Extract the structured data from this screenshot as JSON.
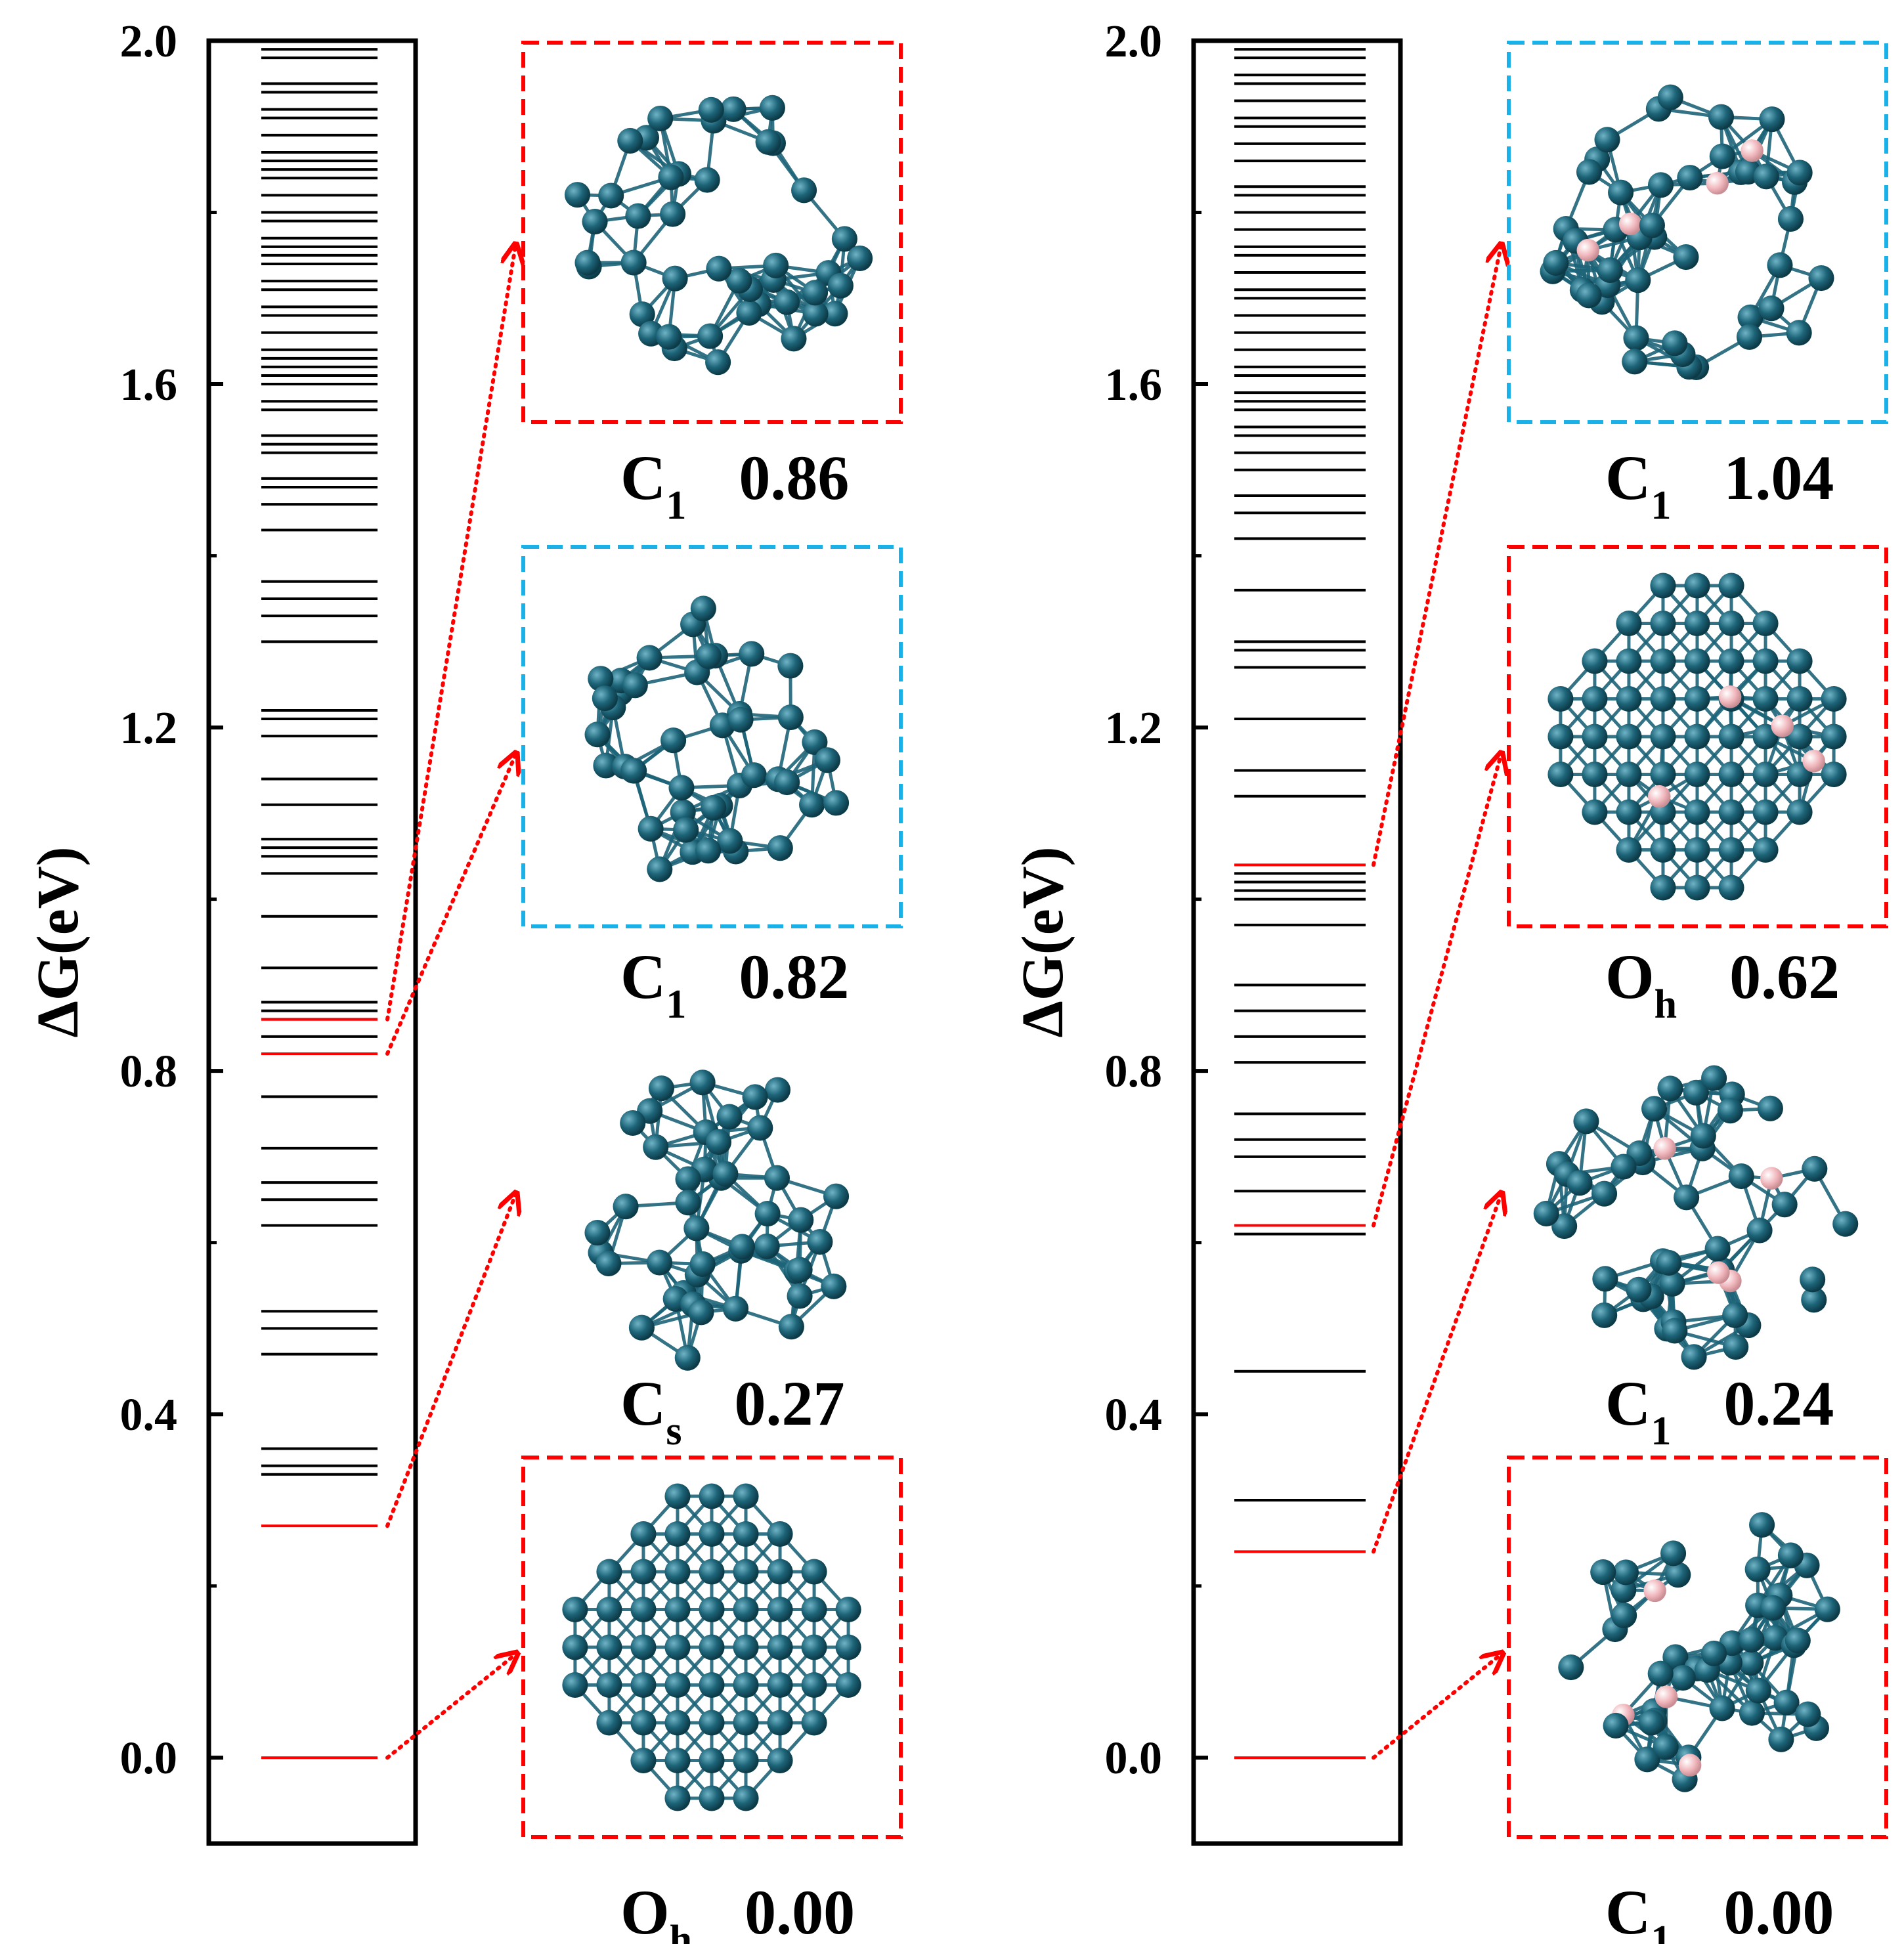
{
  "chart_data": [
    {
      "type": "energy-spectrum",
      "ylabel": "ΔG(eV)",
      "ylim": [
        -0.1,
        2.0
      ],
      "yticks": [
        "0.0",
        "0.4",
        "0.8",
        "1.2",
        "1.6",
        "2.0"
      ],
      "ytick_values": [
        0.0,
        0.4,
        0.8,
        1.2,
        1.6,
        2.0
      ],
      "grid": false,
      "level_color": "#000000",
      "highlight_color": "#ff0000",
      "levels": [
        0.33,
        0.34,
        0.36,
        0.47,
        0.5,
        0.52,
        0.62,
        0.65,
        0.67,
        0.71,
        0.77,
        0.84,
        0.86,
        0.87,
        0.88,
        0.92,
        0.98,
        1.03,
        1.05,
        1.06,
        1.07,
        1.11,
        1.14,
        1.19,
        1.21,
        1.22,
        1.3,
        1.33,
        1.35,
        1.37,
        1.43,
        1.46,
        1.48,
        1.49,
        1.52,
        1.53,
        1.54,
        1.57,
        1.58,
        1.6,
        1.61,
        1.62,
        1.63,
        1.64,
        1.66,
        1.68,
        1.69,
        1.71,
        1.72,
        1.74,
        1.75,
        1.76,
        1.77,
        1.79,
        1.8,
        1.82,
        1.84,
        1.85,
        1.86,
        1.87,
        1.89,
        1.91,
        1.92,
        1.94,
        1.95,
        1.98,
        1.99
      ],
      "highlighted": [
        {
          "energy": 0.86,
          "symmetry": "C",
          "subscript": "1",
          "value": "0.86",
          "box_color": "#ff0000"
        },
        {
          "energy": 0.82,
          "symmetry": "C",
          "subscript": "1",
          "value": "0.82",
          "box_color": "#1ab0e8"
        },
        {
          "energy": 0.27,
          "symmetry": "C",
          "subscript": "s",
          "value": "0.27",
          "box_color": null
        },
        {
          "energy": 0.0,
          "symmetry": "O",
          "subscript": "h",
          "value": "0.00",
          "box_color": "#ff0000"
        }
      ]
    },
    {
      "type": "energy-spectrum",
      "ylabel": "ΔG(eV)",
      "ylim": [
        -0.1,
        2.0
      ],
      "yticks": [
        "0.0",
        "0.4",
        "0.8",
        "1.2",
        "1.6",
        "2.0"
      ],
      "ytick_values": [
        0.0,
        0.4,
        0.8,
        1.2,
        1.6,
        2.0
      ],
      "grid": false,
      "level_color": "#000000",
      "highlight_color": "#ff0000",
      "levels": [
        0.3,
        0.45,
        0.61,
        0.66,
        0.7,
        0.72,
        0.75,
        0.81,
        0.84,
        0.87,
        0.9,
        0.97,
        1.0,
        1.01,
        1.02,
        1.03,
        1.12,
        1.15,
        1.21,
        1.27,
        1.29,
        1.3,
        1.36,
        1.42,
        1.45,
        1.47,
        1.5,
        1.52,
        1.54,
        1.55,
        1.57,
        1.58,
        1.59,
        1.61,
        1.62,
        1.64,
        1.66,
        1.68,
        1.7,
        1.71,
        1.73,
        1.75,
        1.76,
        1.78,
        1.8,
        1.82,
        1.83,
        1.86,
        1.88,
        1.9,
        1.91,
        1.93,
        1.95,
        1.96,
        1.98,
        1.99
      ],
      "highlighted": [
        {
          "energy": 1.04,
          "symmetry": "C",
          "subscript": "1",
          "value": "1.04",
          "box_color": "#1ab0e8"
        },
        {
          "energy": 0.62,
          "symmetry": "O",
          "subscript": "h",
          "value": "0.62",
          "box_color": "#ff0000"
        },
        {
          "energy": 0.24,
          "symmetry": "C",
          "subscript": "1",
          "value": "0.24",
          "box_color": null
        },
        {
          "energy": 0.0,
          "symmetry": "C",
          "subscript": "1",
          "value": "0.00",
          "box_color": "#ff0000"
        }
      ]
    }
  ],
  "colors": {
    "axis": "#000000",
    "arrow": "#ff0000",
    "atom_pd": "#1d6478",
    "atom_h": "#f0b7bd"
  }
}
